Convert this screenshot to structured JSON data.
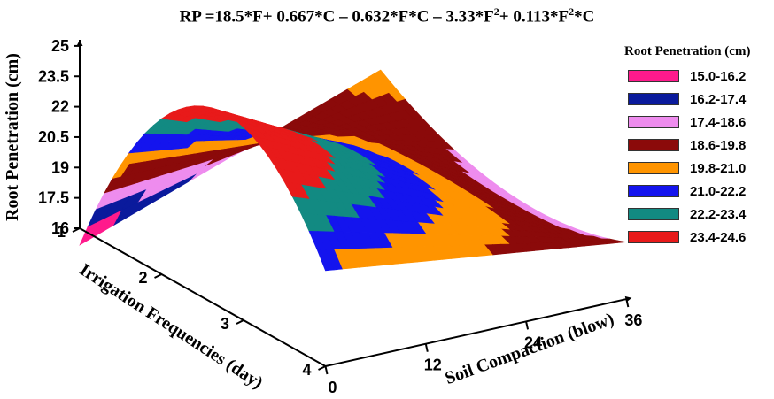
{
  "chart_data": {
    "type": "surface3d",
    "title": "RP = 18.5*F + 0.667*C – 0.632*F*C – 3.33*F² + 0.113*F²*C",
    "title_parts": {
      "pre": "RP =18.5*F+ 0.667*C – 0.632*F*C – 3.33*F",
      "sup1": "2",
      "mid": "+ 0.113*F",
      "sup2": "2",
      "post": "*C"
    },
    "equation": {
      "F": 18.5,
      "C": 0.667,
      "FC": -0.632,
      "F2": -3.33,
      "F2C": 0.113
    },
    "zlabel": "Root Penetration (cm)",
    "xlabel": "Irrigation Frequencies (day)",
    "ylabel": "Soil  Compaction (blow)",
    "z_ticks": [
      "16",
      "17.5",
      "19",
      "20.5",
      "22",
      "23.5",
      "25"
    ],
    "zlim": [
      16,
      25
    ],
    "x_ticks": [
      "1",
      "2",
      "3",
      "4"
    ],
    "xlim": [
      1,
      4
    ],
    "y_ticks": [
      "0",
      "12",
      "24",
      "36"
    ],
    "ylim": [
      0,
      36
    ],
    "legend": {
      "title": "Root Penetration (cm)",
      "placement": "right",
      "entries": [
        {
          "label": "15.0-16.2",
          "color": "#ff1a8c",
          "min": 15.0,
          "max": 16.2
        },
        {
          "label": "16.2-17.4",
          "color": "#0a1a9c",
          "min": 16.2,
          "max": 17.4
        },
        {
          "label": "17.4-18.6",
          "color": "#ee8cee",
          "min": 17.4,
          "max": 18.6
        },
        {
          "label": "18.6-19.8",
          "color": "#8b0a0a",
          "min": 18.6,
          "max": 19.8
        },
        {
          "label": "19.8-21.0",
          "color": "#ff9400",
          "min": 19.8,
          "max": 21.0
        },
        {
          "label": "21.0-22.2",
          "color": "#1414ee",
          "min": 21.0,
          "max": 22.2
        },
        {
          "label": "22.2-23.4",
          "color": "#128a82",
          "min": 22.2,
          "max": 23.4
        },
        {
          "label": "23.4-24.6",
          "color": "#e81a1a",
          "min": 23.4,
          "max": 24.6
        }
      ]
    }
  }
}
